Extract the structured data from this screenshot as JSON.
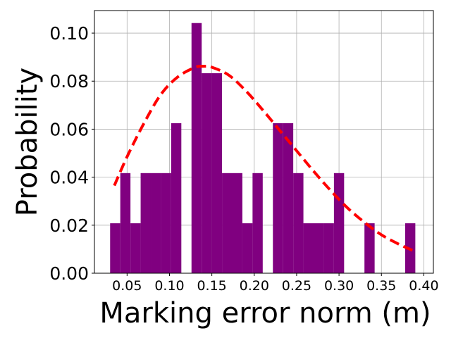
{
  "chart_data": {
    "type": "bar",
    "xlabel": "Marking error norm (m)",
    "ylabel": "Probability",
    "xlim": [
      0.0115,
      0.4113
    ],
    "ylim": [
      0.0,
      0.1094
    ],
    "xticks": [
      0.05,
      0.1,
      0.15,
      0.2,
      0.25,
      0.3,
      0.35,
      0.4
    ],
    "xtick_labels": [
      "0.05",
      "0.10",
      "0.15",
      "0.20",
      "0.25",
      "0.30",
      "0.35",
      "0.40"
    ],
    "yticks": [
      0.0,
      0.02,
      0.04,
      0.06,
      0.08,
      0.1
    ],
    "ytick_labels": [
      "0.00",
      "0.02",
      "0.04",
      "0.06",
      "0.08",
      "0.10"
    ],
    "grid": true,
    "bar_color": "#800080",
    "curve_color": "#ff0000",
    "bin_width": 0.012,
    "bins": [
      {
        "x0": 0.03,
        "value": 0.0208
      },
      {
        "x0": 0.042,
        "value": 0.0417
      },
      {
        "x0": 0.054,
        "value": 0.0208
      },
      {
        "x0": 0.066,
        "value": 0.0417
      },
      {
        "x0": 0.078,
        "value": 0.0417
      },
      {
        "x0": 0.09,
        "value": 0.0417
      },
      {
        "x0": 0.102,
        "value": 0.0625
      },
      {
        "x0": 0.126,
        "value": 0.1042
      },
      {
        "x0": 0.138,
        "value": 0.0833
      },
      {
        "x0": 0.15,
        "value": 0.0833
      },
      {
        "x0": 0.162,
        "value": 0.0417
      },
      {
        "x0": 0.174,
        "value": 0.0417
      },
      {
        "x0": 0.186,
        "value": 0.0208
      },
      {
        "x0": 0.198,
        "value": 0.0417
      },
      {
        "x0": 0.222,
        "value": 0.0625
      },
      {
        "x0": 0.234,
        "value": 0.0625
      },
      {
        "x0": 0.246,
        "value": 0.0417
      },
      {
        "x0": 0.258,
        "value": 0.0208
      },
      {
        "x0": 0.27,
        "value": 0.0208
      },
      {
        "x0": 0.282,
        "value": 0.0208
      },
      {
        "x0": 0.294,
        "value": 0.0417
      },
      {
        "x0": 0.33,
        "value": 0.0208
      },
      {
        "x0": 0.378,
        "value": 0.0208
      }
    ],
    "fit_curve": {
      "style": "dashed",
      "x": [
        0.035,
        0.05,
        0.07,
        0.09,
        0.11,
        0.13,
        0.14,
        0.15,
        0.17,
        0.19,
        0.21,
        0.23,
        0.25,
        0.27,
        0.29,
        0.31,
        0.33,
        0.35,
        0.37,
        0.39
      ],
      "y": [
        0.0365,
        0.0485,
        0.0625,
        0.0745,
        0.0818,
        0.0857,
        0.0862,
        0.0858,
        0.0825,
        0.076,
        0.068,
        0.0595,
        0.051,
        0.0425,
        0.0345,
        0.0272,
        0.0212,
        0.016,
        0.0122,
        0.009
      ]
    }
  }
}
